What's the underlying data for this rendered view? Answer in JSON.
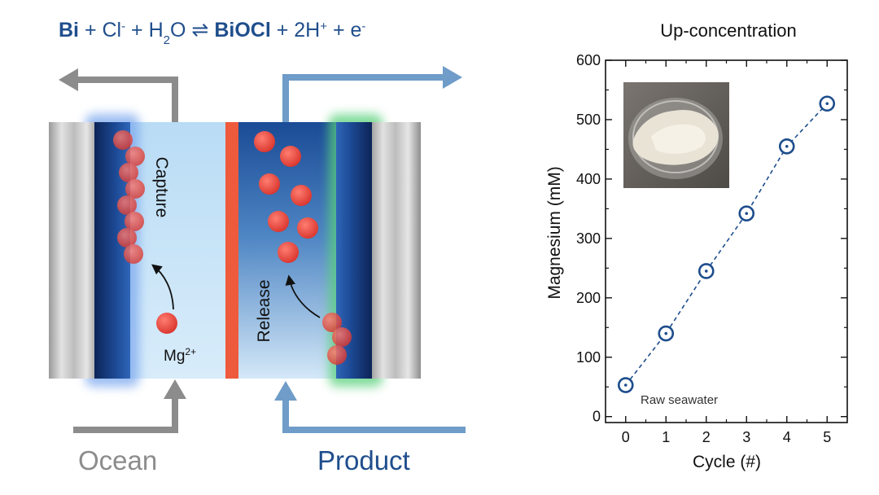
{
  "diagram": {
    "equation": {
      "bi": "Bi",
      "plus1": " + ",
      "cl": "Cl",
      "cl_charge": "-",
      "plus2": " + ",
      "h": "H",
      "h2o_sub": "2",
      "o": "O",
      "arrow": " ⇌ ",
      "biocl": "BiOCl",
      "plus3": " + ",
      "twoh": "2H",
      "h_charge": "+",
      "plus4": " + ",
      "e": "e",
      "e_charge": "-"
    },
    "capture_label": "Capture",
    "release_label": "Release",
    "ion_label": "Mg",
    "ion_charge": "2+",
    "ocean_label": "Ocean",
    "product_label": "Product",
    "colors": {
      "navy_text": "#1f4e8c",
      "ocean_gray": "#8c8c8c",
      "product_blue": "#6f9cc8",
      "electrode_dark": "#1b3a78",
      "membrane": "#ee5a3c",
      "ion_red": "#e8443c",
      "capture_glow": "#7aa7ee",
      "release_glow": "#59d07a"
    }
  },
  "chart_data": {
    "type": "scatter",
    "title": "Up-concentration",
    "xlabel": "Cycle (#)",
    "ylabel": "Magnesium (mM)",
    "x": [
      0,
      1,
      2,
      3,
      4,
      5
    ],
    "values": [
      53,
      140,
      245,
      342,
      455,
      527
    ],
    "xlim": [
      -0.5,
      5.5
    ],
    "ylim": [
      -10,
      600
    ],
    "xticks": [
      "0",
      "1",
      "2",
      "3",
      "4",
      "5"
    ],
    "yticks": [
      "0",
      "100",
      "200",
      "300",
      "400",
      "500",
      "600"
    ],
    "annotation": "Raw seawater",
    "line_style": "dashed",
    "marker": "open-circle-dot",
    "series_color": "#1d4d8c",
    "grid": false,
    "inset": "photo of magnesium salt powder in a dish"
  }
}
